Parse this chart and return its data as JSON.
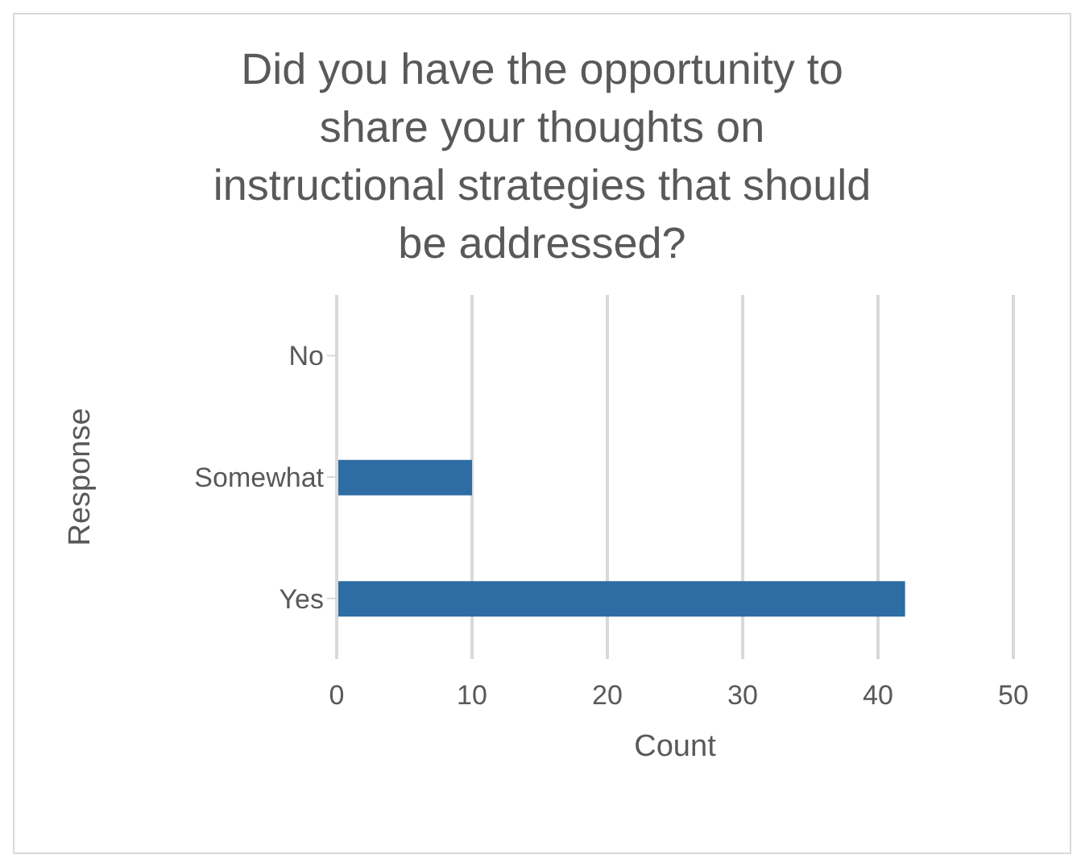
{
  "chart_data": {
    "type": "bar",
    "orientation": "horizontal",
    "title": "Did you have the opportunity to share your thoughts on instructional strategies that should be addressed?",
    "xlabel": "Count",
    "ylabel": "Response",
    "categories": [
      "No",
      "Somewhat",
      "Yes"
    ],
    "series": [
      {
        "color": "#2e6ca4",
        "values": [
          0,
          10,
          42
        ]
      }
    ],
    "xlim": [
      0,
      50
    ],
    "xticks": [
      0,
      10,
      20,
      30,
      40,
      50
    ],
    "grid": "x",
    "legend": false
  }
}
